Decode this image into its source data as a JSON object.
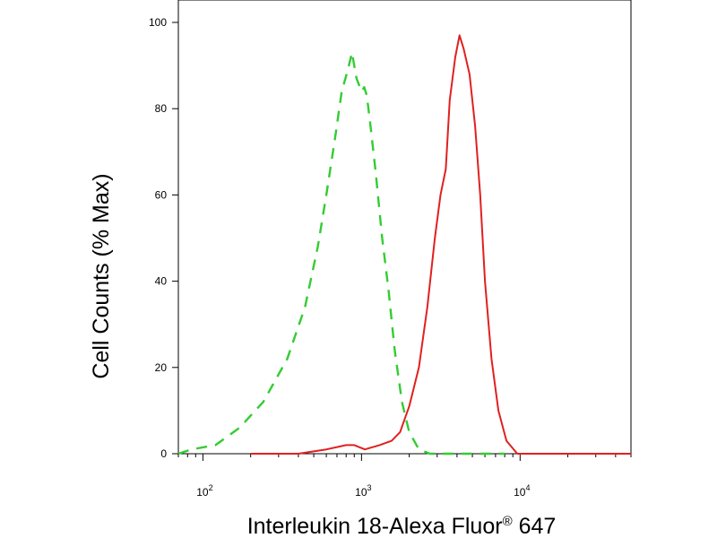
{
  "chart_data": {
    "type": "line",
    "x_scale": "log",
    "xlim": [
      70,
      50000
    ],
    "ylim": [
      0,
      100
    ],
    "grid": false,
    "legend": "none",
    "xlabel": "Interleukin 18-Alexa Fluor",
    "xlabel_superscript": "®",
    "xlabel_suffix": " 647",
    "ylabel": "Cell Counts (% Max)",
    "y_ticks": [
      0,
      20,
      40,
      60,
      80,
      100
    ],
    "y_tick_labels": [
      "0",
      "20",
      "40",
      "60",
      "80",
      "100"
    ],
    "x_ticks": [
      100,
      1000,
      10000
    ],
    "x_tick_labels": [
      {
        "base": "10",
        "exp": "2"
      },
      {
        "base": "10",
        "exp": "3"
      },
      {
        "base": "10",
        "exp": "4"
      }
    ],
    "series": [
      {
        "color": "#33cc33",
        "dash": "dashed",
        "points": [
          [
            70,
            0
          ],
          [
            85,
            1
          ],
          [
            120,
            2
          ],
          [
            170,
            6
          ],
          [
            240,
            12
          ],
          [
            340,
            22
          ],
          [
            440,
            34
          ],
          [
            530,
            48
          ],
          [
            600,
            60
          ],
          [
            680,
            73
          ],
          [
            750,
            84
          ],
          [
            820,
            89
          ],
          [
            870,
            93
          ],
          [
            930,
            87
          ],
          [
            1000,
            84
          ],
          [
            1040,
            85
          ],
          [
            1080,
            83
          ],
          [
            1140,
            76
          ],
          [
            1230,
            65
          ],
          [
            1350,
            50
          ],
          [
            1480,
            38
          ],
          [
            1620,
            24
          ],
          [
            1800,
            12
          ],
          [
            2000,
            5
          ],
          [
            2300,
            1
          ],
          [
            2700,
            0
          ],
          [
            4000,
            0
          ],
          [
            8000,
            0
          ]
        ]
      },
      {
        "color": "#e02020",
        "dash": "solid",
        "points": [
          [
            200,
            0
          ],
          [
            400,
            0
          ],
          [
            600,
            1
          ],
          [
            800,
            2
          ],
          [
            900,
            2
          ],
          [
            1050,
            1
          ],
          [
            1300,
            2
          ],
          [
            1550,
            3
          ],
          [
            1750,
            5
          ],
          [
            2000,
            11
          ],
          [
            2300,
            20
          ],
          [
            2600,
            34
          ],
          [
            2900,
            50
          ],
          [
            3150,
            60
          ],
          [
            3400,
            66
          ],
          [
            3600,
            82
          ],
          [
            3900,
            92
          ],
          [
            4150,
            97
          ],
          [
            4400,
            94
          ],
          [
            4800,
            88
          ],
          [
            5200,
            76
          ],
          [
            5600,
            60
          ],
          [
            6000,
            40
          ],
          [
            6600,
            22
          ],
          [
            7300,
            10
          ],
          [
            8200,
            3
          ],
          [
            9600,
            0
          ],
          [
            12000,
            0
          ],
          [
            20000,
            0
          ],
          [
            50000,
            0
          ]
        ]
      }
    ]
  }
}
